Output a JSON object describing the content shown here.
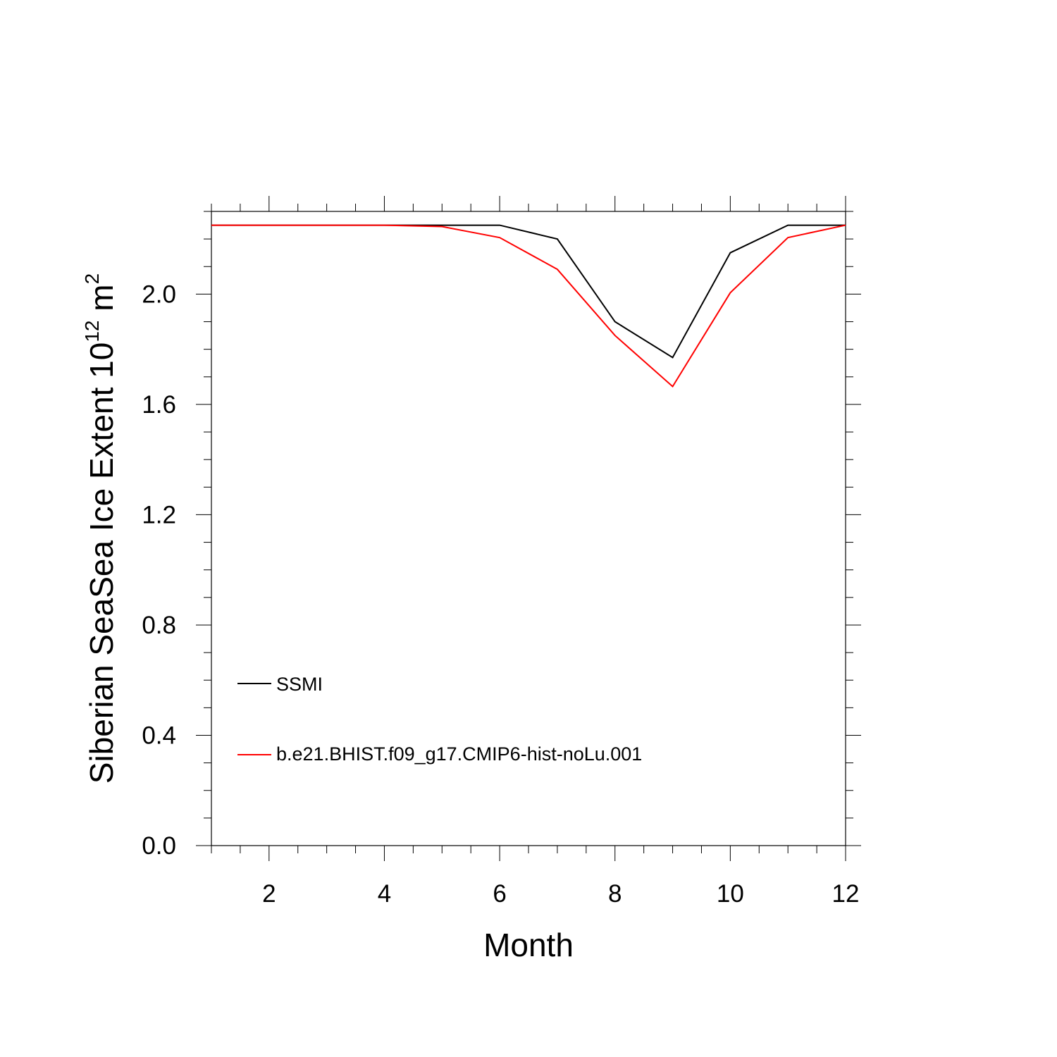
{
  "chart_data": {
    "type": "line",
    "xlabel": "Month",
    "ylabel": {
      "text": "Siberian SeaSea Ice Extent 10",
      "superscript": "12",
      "unit": " m",
      "unit_superscript": "2"
    },
    "xlim": [
      1,
      12
    ],
    "ylim": [
      0.0,
      2.3
    ],
    "x_ticks": [
      2,
      4,
      6,
      8,
      10,
      12
    ],
    "x_tick_labels": [
      "2",
      "4",
      "6",
      "8",
      "10",
      "12"
    ],
    "y_ticks": [
      0.0,
      0.4,
      0.8,
      1.2,
      1.6,
      2.0
    ],
    "y_tick_labels": [
      "0.0",
      "0.4",
      "0.8",
      "1.2",
      "1.6",
      "2.0"
    ],
    "grid": false,
    "legend_position": "bottom-left",
    "x": [
      1,
      2,
      3,
      4,
      5,
      6,
      7,
      8,
      9,
      10,
      11,
      12
    ],
    "series": [
      {
        "name": "SSMI",
        "color": "#000000",
        "values": [
          2.25,
          2.25,
          2.25,
          2.25,
          2.25,
          2.25,
          2.2,
          1.9,
          1.77,
          2.15,
          2.25,
          2.25
        ]
      },
      {
        "name": "b.e21.BHIST.f09_g17.CMIP6-hist-noLu.001",
        "color": "#ff0000",
        "values": [
          2.25,
          2.25,
          2.25,
          2.25,
          2.245,
          2.205,
          2.09,
          1.85,
          1.665,
          2.005,
          2.205,
          2.25
        ]
      }
    ]
  }
}
